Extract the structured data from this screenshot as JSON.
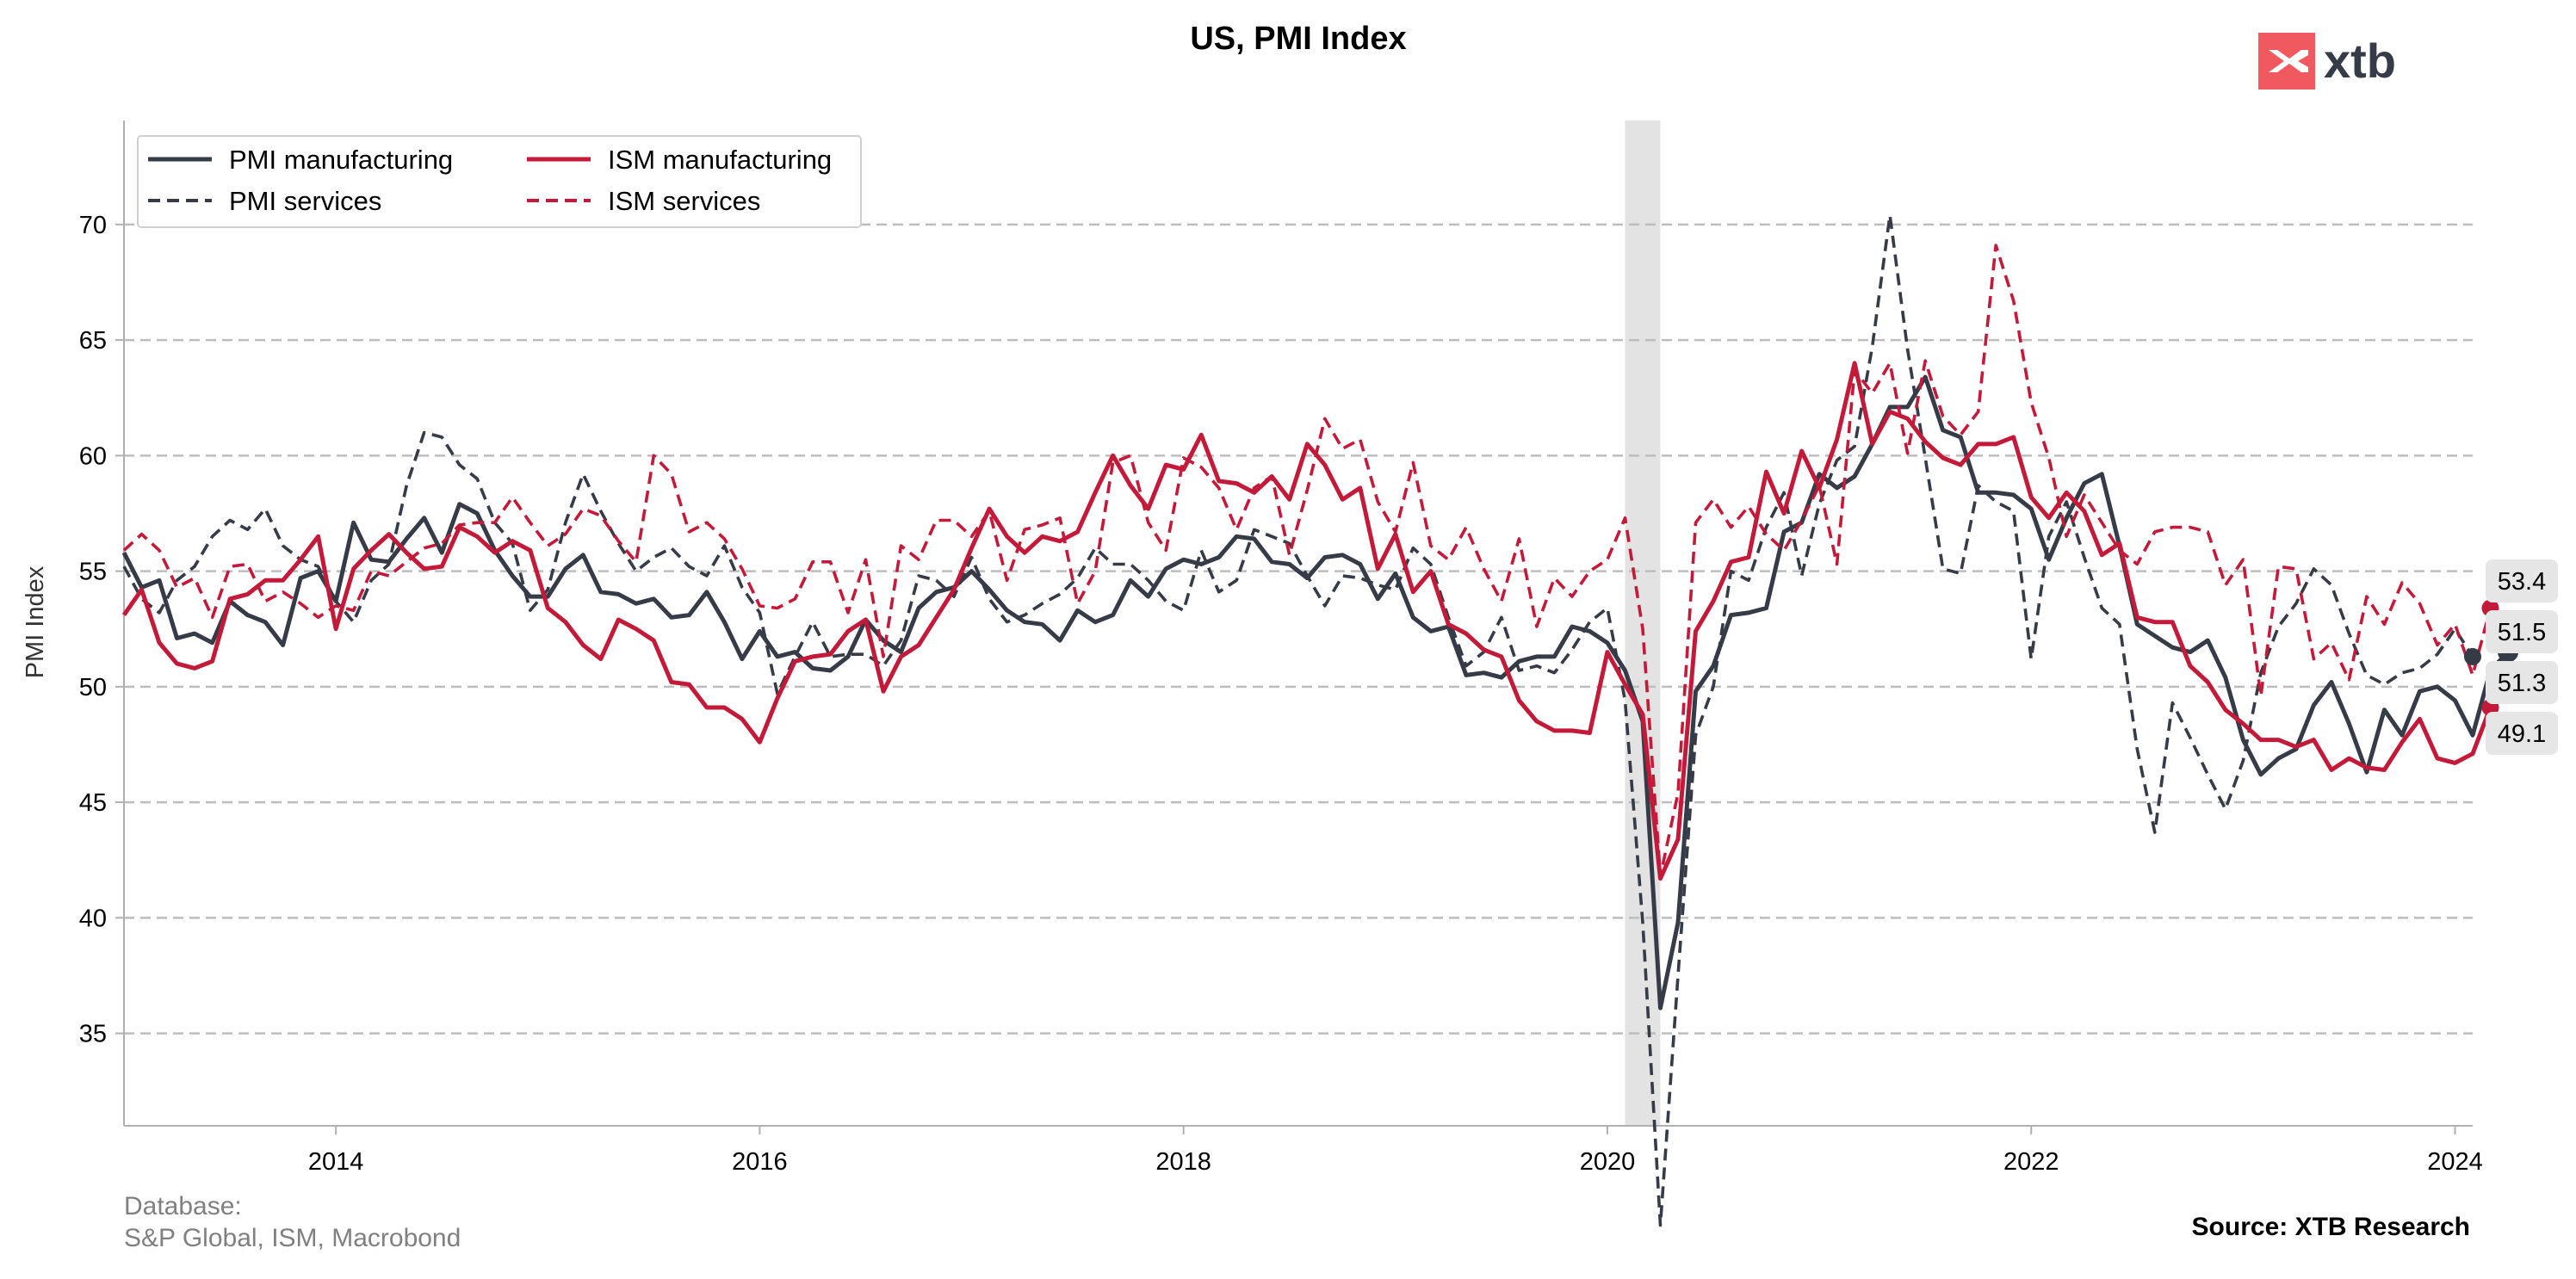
{
  "brand": {
    "name": "xtb",
    "color": "#f05a5f"
  },
  "footer": {
    "database_label": "Database:",
    "database_sources": "S&P Global, ISM, Macrobond",
    "source": "Source: XTB Research"
  },
  "chart_data": {
    "type": "line",
    "title": "US, PMI Index",
    "xlabel": "",
    "ylabel": "PMI Index",
    "xlim": [
      "2013-01",
      "2024-02"
    ],
    "ylim": [
      31,
      74.5
    ],
    "x_ticks": [
      "2014",
      "2016",
      "2018",
      "2020",
      "2022",
      "2024"
    ],
    "y_ticks": [
      35,
      40,
      45,
      50,
      55,
      60,
      65,
      70
    ],
    "grid": "horizontal-dashed",
    "legend_position": "top-left",
    "shaded_period": [
      "2020-02",
      "2020-04"
    ],
    "colors": {
      "dark": "#363b48",
      "red": "#c41a3a",
      "shade": "#e3e3e3",
      "grid": "#bdbdbd"
    },
    "end_labels": [
      "53.4",
      "51.5",
      "51.3",
      "49.1"
    ],
    "start": "2013-01",
    "series": [
      {
        "name": "PMI manufacturing",
        "style": "solid",
        "color": "#363b48",
        "values": [
          55.8,
          54.3,
          54.6,
          52.1,
          52.3,
          51.9,
          53.7,
          53.1,
          52.8,
          51.8,
          54.7,
          55.0,
          53.7,
          57.1,
          55.5,
          55.4,
          56.4,
          57.3,
          55.8,
          57.9,
          57.5,
          55.9,
          54.8,
          53.9,
          53.9,
          55.1,
          55.7,
          54.1,
          54.0,
          53.6,
          53.8,
          53.0,
          53.1,
          54.1,
          52.8,
          51.2,
          52.4,
          51.3,
          51.5,
          50.8,
          50.7,
          51.3,
          52.9,
          52.0,
          51.5,
          53.4,
          54.1,
          54.3,
          55.0,
          54.2,
          53.3,
          52.8,
          52.7,
          52.0,
          53.3,
          52.8,
          53.1,
          54.6,
          53.9,
          55.1,
          55.5,
          55.3,
          55.6,
          56.5,
          56.4,
          55.4,
          55.3,
          54.7,
          55.6,
          55.7,
          55.3,
          53.8,
          54.9,
          53.0,
          52.4,
          52.6,
          50.5,
          50.6,
          50.4,
          51.1,
          51.3,
          51.3,
          52.6,
          52.4,
          51.9,
          50.7,
          48.5,
          36.1,
          39.8,
          49.8,
          50.9,
          53.1,
          53.2,
          53.4,
          56.7,
          57.1,
          59.2,
          58.6,
          59.1,
          60.5,
          62.1,
          62.1,
          63.4,
          61.1,
          60.8,
          58.4,
          58.4,
          58.3,
          57.7,
          55.5,
          57.3,
          58.8,
          59.2,
          56.1,
          52.7,
          52.2,
          51.7,
          51.5,
          52.0,
          50.4,
          47.7,
          46.2,
          46.9,
          47.3,
          49.2,
          50.2,
          48.4,
          46.3,
          49.0,
          47.9,
          49.8,
          50.0,
          49.4,
          47.9,
          50.7,
          51.5
        ]
      },
      {
        "name": "PMI services",
        "style": "dashed",
        "color": "#363b48",
        "values": [
          55.2,
          53.8,
          53.2,
          54.6,
          55.2,
          56.5,
          57.2,
          56.8,
          57.7,
          56.1,
          55.5,
          55.2,
          53.7,
          52.8,
          54.6,
          55.3,
          58.7,
          61.0,
          60.8,
          59.6,
          59.0,
          57.1,
          56.2,
          53.3,
          54.2,
          57.1,
          59.2,
          57.6,
          56.2,
          55.0,
          55.6,
          56.0,
          55.2,
          54.8,
          56.1,
          54.3,
          53.2,
          49.7,
          51.3,
          52.8,
          51.3,
          51.4,
          51.4,
          50.9,
          52.0,
          54.8,
          54.6,
          53.9,
          55.6,
          53.8,
          52.8,
          53.1,
          53.6,
          54.0,
          54.7,
          56.0,
          55.3,
          55.3,
          54.6,
          53.7,
          53.3,
          55.9,
          54.1,
          54.6,
          56.8,
          56.5,
          56.2,
          54.8,
          53.5,
          54.8,
          54.7,
          54.4,
          54.2,
          56.0,
          55.3,
          53.0,
          50.9,
          51.5,
          53.0,
          50.7,
          50.9,
          50.6,
          51.6,
          52.8,
          53.4,
          49.4,
          39.8,
          26.7,
          37.5,
          47.9,
          50.0,
          55.0,
          54.6,
          56.9,
          58.4,
          54.8,
          57.9,
          59.8,
          60.4,
          64.7,
          70.4,
          64.6,
          59.9,
          55.1,
          54.9,
          58.7,
          58.0,
          57.6,
          51.2,
          56.5,
          58.0,
          55.6,
          53.4,
          52.7,
          47.3,
          43.7,
          49.3,
          47.8,
          46.2,
          44.7,
          46.8,
          50.6,
          52.6,
          53.6,
          55.1,
          54.4,
          52.3,
          50.5,
          50.1,
          50.6,
          50.8,
          51.4,
          52.5,
          51.3
        ]
      },
      {
        "name": "ISM manufacturing",
        "style": "solid",
        "color": "#c41a3a",
        "values": [
          53.1,
          54.2,
          51.9,
          51.0,
          50.8,
          51.1,
          53.8,
          54.0,
          54.6,
          54.6,
          55.5,
          56.5,
          52.5,
          55.1,
          55.9,
          56.6,
          55.8,
          55.1,
          55.2,
          56.9,
          56.5,
          55.8,
          56.3,
          55.9,
          53.4,
          52.8,
          51.8,
          51.2,
          52.9,
          52.5,
          52.0,
          50.2,
          50.1,
          49.1,
          49.1,
          48.6,
          47.6,
          49.5,
          51.1,
          51.3,
          51.4,
          52.4,
          52.9,
          49.8,
          51.3,
          51.8,
          53.0,
          54.2,
          56.0,
          57.7,
          56.5,
          55.8,
          56.5,
          56.3,
          56.7,
          58.4,
          60.0,
          58.7,
          57.7,
          59.6,
          59.4,
          60.9,
          58.9,
          58.8,
          58.4,
          59.1,
          58.1,
          60.5,
          59.6,
          58.1,
          58.6,
          55.1,
          56.6,
          54.1,
          55.0,
          52.7,
          52.3,
          51.6,
          51.3,
          49.4,
          48.5,
          48.1,
          48.1,
          48.0,
          51.5,
          50.1,
          48.8,
          41.7,
          43.4,
          52.4,
          53.7,
          55.4,
          55.6,
          59.3,
          57.5,
          60.2,
          58.6,
          60.7,
          64.0,
          60.5,
          61.9,
          61.6,
          60.6,
          59.9,
          59.6,
          60.5,
          60.5,
          60.8,
          58.2,
          57.3,
          58.4,
          57.6,
          55.7,
          56.2,
          53.0,
          52.8,
          52.8,
          50.9,
          50.2,
          49.0,
          48.4,
          47.7,
          47.7,
          47.4,
          47.7,
          46.4,
          46.9,
          46.5,
          46.4,
          47.6,
          48.6,
          46.9,
          46.7,
          47.1,
          49.1
        ]
      },
      {
        "name": "ISM services",
        "style": "dashed",
        "color": "#c41a3a",
        "values": [
          55.9,
          56.6,
          55.9,
          54.3,
          54.7,
          53.0,
          55.2,
          55.3,
          53.7,
          54.1,
          53.6,
          53.0,
          53.5,
          53.3,
          55.0,
          54.8,
          55.4,
          56.0,
          56.2,
          57.0,
          57.1,
          57.1,
          58.2,
          57.1,
          56.1,
          56.6,
          57.7,
          57.4,
          56.3,
          55.4,
          60.0,
          59.2,
          56.7,
          57.1,
          56.4,
          55.1,
          53.5,
          53.4,
          53.8,
          55.4,
          55.4,
          53.2,
          55.5,
          51.3,
          56.1,
          55.5,
          57.2,
          57.2,
          56.5,
          57.6,
          54.6,
          56.8,
          57.0,
          57.3,
          53.6,
          55.0,
          59.7,
          60.0,
          57.1,
          55.9,
          59.9,
          59.5,
          58.6,
          56.8,
          58.6,
          59.1,
          55.7,
          58.5,
          61.6,
          60.3,
          60.7,
          58.0,
          56.7,
          59.7,
          56.1,
          55.5,
          56.9,
          55.1,
          53.7,
          56.4,
          52.6,
          54.7,
          53.9,
          55.0,
          55.5,
          57.3,
          52.5,
          41.8,
          45.4,
          57.1,
          58.1,
          56.9,
          57.8,
          56.6,
          55.9,
          57.2,
          58.7,
          55.3,
          63.7,
          62.7,
          64.0,
          60.1,
          64.1,
          61.7,
          60.9,
          61.9,
          69.1,
          66.7,
          62.3,
          59.9,
          56.5,
          58.3,
          57.1,
          55.9,
          55.3,
          56.7,
          56.9,
          56.9,
          56.7,
          54.4,
          55.5,
          49.6,
          55.2,
          55.1,
          51.2,
          51.9,
          50.3,
          53.9,
          52.7,
          54.5,
          53.6,
          51.8,
          52.7,
          50.5,
          53.4
        ]
      }
    ]
  }
}
